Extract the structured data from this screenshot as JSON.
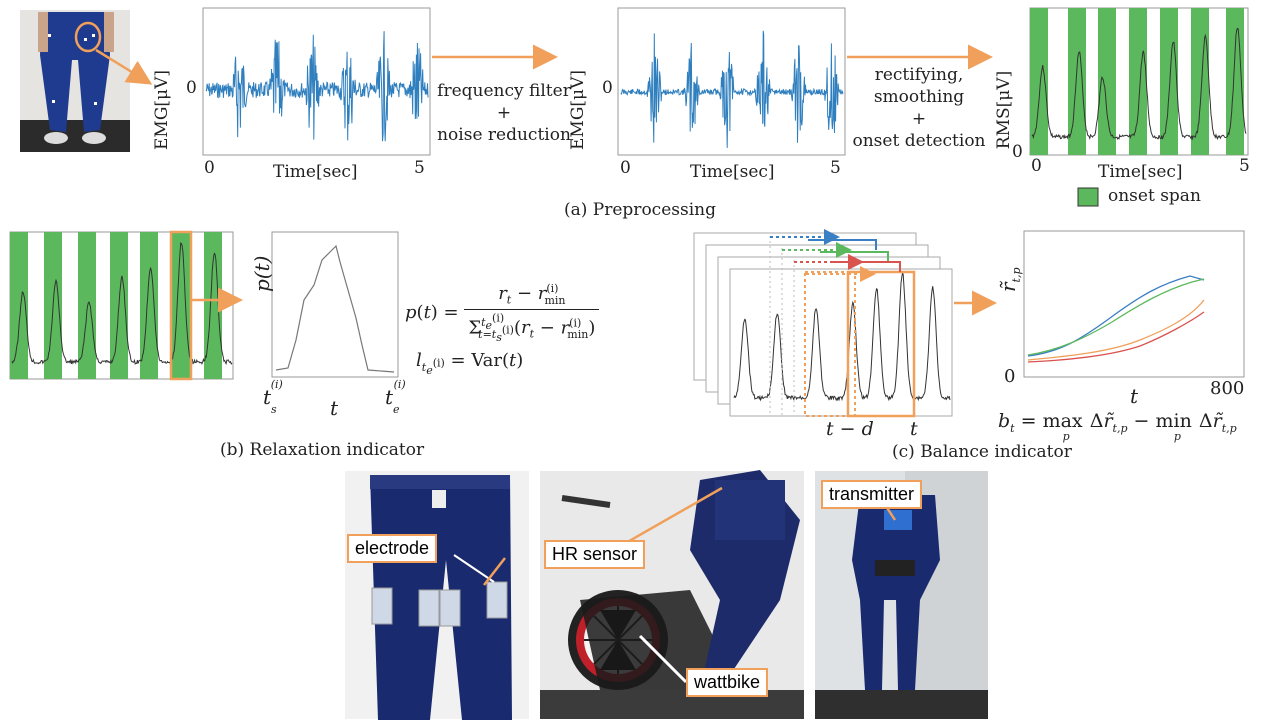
{
  "preprocessing": {
    "caption": "(a) Preprocessing",
    "raw_plot": {
      "ylabel": "EMG[μV]",
      "xlabel": "Time[sec]",
      "x_start": "0",
      "x_end": "5",
      "y_zero": "0"
    },
    "filtered_plot": {
      "ylabel": "EMG[μV]",
      "xlabel": "Time[sec]",
      "x_start": "0",
      "x_end": "5",
      "y_zero": "0"
    },
    "rms_plot": {
      "ylabel": "RMS[μV]",
      "xlabel": "Time[sec]",
      "x_start": "0",
      "x_end": "5",
      "y_zero": "0"
    },
    "step1": [
      "frequency filter",
      "+",
      "noise reduction"
    ],
    "step2": [
      "rectifying,",
      "smoothing",
      "+",
      "onset detection"
    ],
    "legend": "onset span"
  },
  "relaxation": {
    "caption": "(b) Relaxation indicator",
    "ylabel": "p(t)",
    "x_start": "t",
    "x_mid": "t",
    "x_end": "t"
  },
  "balance": {
    "caption": "(c) Balance indicator",
    "x_td": "t − d",
    "x_t": "t",
    "ylabel": "r̃",
    "x_axis_label": "t",
    "x_start": "0",
    "x_end": "800",
    "formula": "b_t = max Δr̃ − min Δr̃"
  },
  "photos": {
    "electrode": "electrode",
    "hr_sensor": "HR sensor",
    "wattbike": "wattbike",
    "transmitter": "transmitter"
  },
  "colors": {
    "accent": "#f0a05a",
    "onset": "#5cb85c",
    "signal": "#2f7fbf"
  }
}
